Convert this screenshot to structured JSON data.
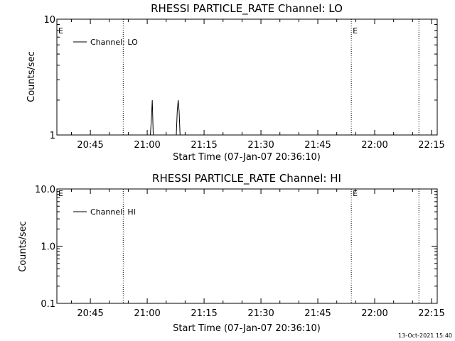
{
  "footer": {
    "timestamp": "13-Oct-2021 15:40"
  },
  "chart_data": [
    {
      "type": "line",
      "title": "RHESSI PARTICLE_RATE Channel: LO",
      "xlabel": "Start Time (07-Jan-07 20:36:10)",
      "ylabel": "Counts/sec",
      "y_scale": "log",
      "ylim": [
        1,
        10
      ],
      "y_ticks": [
        {
          "value": 1,
          "label": "1"
        },
        {
          "value": 10,
          "label": "10"
        }
      ],
      "xlim": [
        "20:36:10",
        "22:16:30"
      ],
      "x_ticks": [
        "20:45",
        "21:00",
        "21:15",
        "21:30",
        "21:45",
        "22:00",
        "22:15"
      ],
      "grid": false,
      "legend_position": "top-left",
      "markers": [
        {
          "time": "20:53:40",
          "label": ""
        },
        {
          "time": "21:53:50",
          "label": "E"
        },
        {
          "time": "22:11:40",
          "label": ""
        }
      ],
      "corner_label": "E",
      "series": [
        {
          "name": "Channel: LO",
          "x": [
            "20:36:10",
            "21:00:50",
            "21:01:05",
            "21:01:20",
            "21:01:35",
            "21:07:40",
            "21:07:55",
            "21:08:10",
            "21:08:25",
            "21:08:40",
            "22:16:30"
          ],
          "values": [
            1,
            1,
            1.35,
            2.0,
            1,
            1,
            1.6,
            2.0,
            1.6,
            1,
            1
          ]
        }
      ]
    },
    {
      "type": "line",
      "title": "RHESSI PARTICLE_RATE Channel: HI",
      "xlabel": "Start Time (07-Jan-07 20:36:10)",
      "ylabel": "Counts/sec",
      "y_scale": "log",
      "ylim": [
        0.1,
        10
      ],
      "y_ticks": [
        {
          "value": 0.1,
          "label": "0.1"
        },
        {
          "value": 1,
          "label": "1.0"
        },
        {
          "value": 10,
          "label": "10.0"
        }
      ],
      "xlim": [
        "20:36:10",
        "22:16:30"
      ],
      "x_ticks": [
        "20:45",
        "21:00",
        "21:15",
        "21:30",
        "21:45",
        "22:00",
        "22:15"
      ],
      "grid": false,
      "legend_position": "top-left",
      "markers": [
        {
          "time": "20:53:40",
          "label": ""
        },
        {
          "time": "21:53:50",
          "label": "E"
        },
        {
          "time": "22:11:40",
          "label": ""
        }
      ],
      "corner_label": "E",
      "series": [
        {
          "name": "Channel: HI",
          "x": [],
          "values": []
        }
      ]
    }
  ]
}
